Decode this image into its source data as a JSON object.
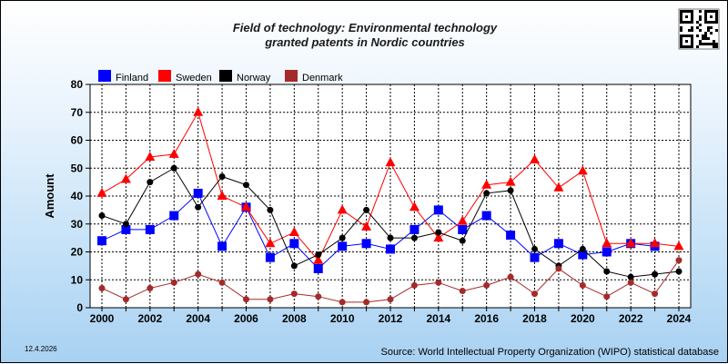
{
  "chart_data": {
    "type": "line",
    "title": "Field of technology: Environmental technology",
    "subtitle": "granted patents in Nordic countries",
    "xlabel": "",
    "ylabel": "Amount",
    "xlim": [
      2000,
      2024
    ],
    "ylim": [
      0,
      80
    ],
    "x_ticks": [
      2000,
      2002,
      2004,
      2006,
      2008,
      2010,
      2012,
      2014,
      2016,
      2018,
      2020,
      2022,
      2024
    ],
    "y_ticks": [
      0,
      10,
      20,
      30,
      40,
      50,
      60,
      70,
      80
    ],
    "grid": true,
    "legend_position": "top-left",
    "x": [
      2000,
      2001,
      2002,
      2003,
      2004,
      2005,
      2006,
      2007,
      2008,
      2009,
      2010,
      2011,
      2012,
      2013,
      2014,
      2015,
      2016,
      2017,
      2018,
      2019,
      2020,
      2021,
      2022,
      2023,
      2024
    ],
    "series": [
      {
        "name": "Finland",
        "color": "#0000ff",
        "marker": "square",
        "values": [
          24,
          28,
          28,
          33,
          41,
          22,
          36,
          18,
          23,
          14,
          22,
          23,
          21,
          28,
          35,
          28,
          33,
          26,
          18,
          23,
          19,
          20,
          23,
          22,
          null
        ]
      },
      {
        "name": "Sweden",
        "color": "#ff0000",
        "marker": "triangle",
        "values": [
          41,
          46,
          54,
          55,
          70,
          40,
          36,
          23,
          27,
          17,
          35,
          29,
          52,
          36,
          25,
          31,
          44,
          45,
          53,
          43,
          49,
          23,
          23,
          23,
          22
        ]
      },
      {
        "name": "Norway",
        "color": "#000000",
        "marker": "circle",
        "values": [
          33,
          30,
          45,
          50,
          36,
          47,
          44,
          35,
          15,
          19,
          25,
          35,
          25,
          25,
          27,
          24,
          41,
          42,
          21,
          15,
          21,
          13,
          11,
          12,
          13
        ]
      },
      {
        "name": "Denmark",
        "color": "#a52a2a",
        "marker": "circle",
        "values": [
          7,
          3,
          7,
          9,
          12,
          9,
          3,
          3,
          5,
          4,
          2,
          2,
          3,
          8,
          9,
          6,
          8,
          11,
          5,
          14,
          8,
          4,
          9,
          5,
          17
        ]
      }
    ]
  },
  "footer": {
    "date": "12.4.2026",
    "source": "Source: World Intellectual Property Organization (WIPO) statistical database"
  },
  "icons": {
    "qr": "qr-code-icon"
  }
}
